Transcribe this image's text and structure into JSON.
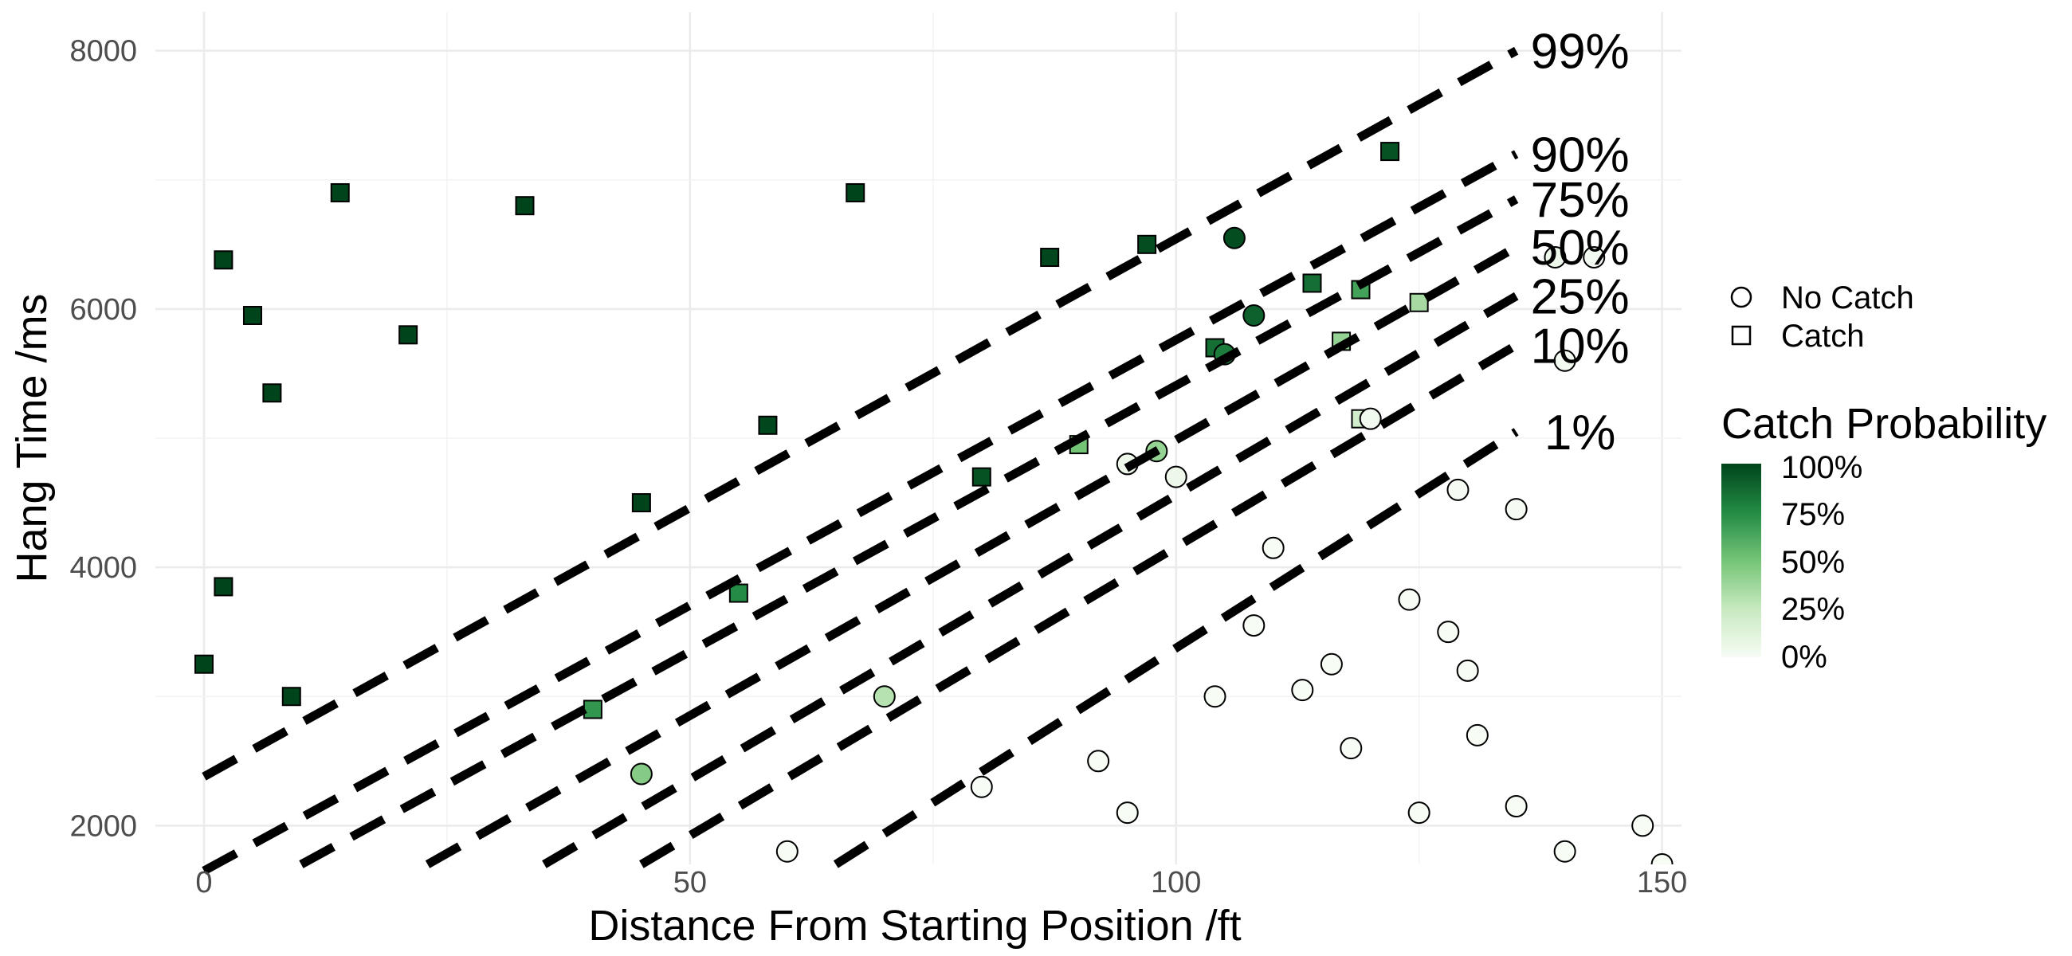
{
  "chart_data": {
    "type": "scatter",
    "xlabel": "Distance From Starting Position /ft",
    "ylabel": "Hang Time /ms",
    "xlim": [
      -5,
      152
    ],
    "ylim": [
      1700,
      8300
    ],
    "x_ticks": [
      0,
      50,
      100,
      150
    ],
    "x_tick_labels": [
      "0",
      "50",
      "100",
      "150"
    ],
    "y_ticks": [
      2000,
      4000,
      6000,
      8000
    ],
    "y_tick_labels": [
      "2000",
      "4000",
      "6000",
      "8000"
    ],
    "grid": true,
    "legend_position": "right",
    "shape_legend": {
      "items": [
        {
          "label": "No Catch",
          "shape": "circle"
        },
        {
          "label": "Catch",
          "shape": "square"
        }
      ]
    },
    "color_legend": {
      "title": "Catch Probability",
      "labels": [
        "100%",
        "75%",
        "50%",
        "25%",
        "0%"
      ],
      "colors": {
        "low": "#f7fcf5",
        "mid": "#74c476",
        "high": "#00441b"
      }
    },
    "probability_contours": [
      {
        "label": "99%",
        "x": [
          0,
          135
        ],
        "y": [
          2380,
          8000
        ]
      },
      {
        "label": "90%",
        "x": [
          0,
          135
        ],
        "y": [
          1650,
          7200
        ]
      },
      {
        "label": "75%",
        "x": [
          10,
          135
        ],
        "y": [
          1700,
          6850
        ]
      },
      {
        "label": "50%",
        "x": [
          23,
          135
        ],
        "y": [
          1700,
          6480
        ]
      },
      {
        "label": "25%",
        "x": [
          35,
          135
        ],
        "y": [
          1700,
          6100
        ]
      },
      {
        "label": "10%",
        "x": [
          45,
          135
        ],
        "y": [
          1700,
          5720
        ]
      },
      {
        "label": "1%",
        "x": [
          65,
          135
        ],
        "y": [
          1700,
          5050
        ]
      }
    ],
    "sample_points": [
      {
        "x": 0,
        "y": 3250,
        "catch": true,
        "p": 1.0
      },
      {
        "x": 2,
        "y": 3850,
        "catch": true,
        "p": 1.0
      },
      {
        "x": 2,
        "y": 6380,
        "catch": true,
        "p": 1.0
      },
      {
        "x": 5,
        "y": 5950,
        "catch": true,
        "p": 1.0
      },
      {
        "x": 7,
        "y": 5350,
        "catch": true,
        "p": 1.0
      },
      {
        "x": 9,
        "y": 3000,
        "catch": true,
        "p": 1.0
      },
      {
        "x": 14,
        "y": 6900,
        "catch": true,
        "p": 1.0
      },
      {
        "x": 21,
        "y": 5800,
        "catch": true,
        "p": 1.0
      },
      {
        "x": 33,
        "y": 6800,
        "catch": true,
        "p": 1.0
      },
      {
        "x": 45,
        "y": 4500,
        "catch": true,
        "p": 1.0
      },
      {
        "x": 58,
        "y": 5100,
        "catch": true,
        "p": 0.99
      },
      {
        "x": 67,
        "y": 6900,
        "catch": true,
        "p": 1.0
      },
      {
        "x": 80,
        "y": 4700,
        "catch": true,
        "p": 0.95
      },
      {
        "x": 87,
        "y": 6400,
        "catch": true,
        "p": 0.99
      },
      {
        "x": 97,
        "y": 6500,
        "catch": true,
        "p": 0.97
      },
      {
        "x": 104,
        "y": 5700,
        "catch": true,
        "p": 0.85
      },
      {
        "x": 122,
        "y": 7220,
        "catch": true,
        "p": 0.95
      },
      {
        "x": 114,
        "y": 6200,
        "catch": true,
        "p": 0.85
      },
      {
        "x": 119,
        "y": 6150,
        "catch": true,
        "p": 0.65
      },
      {
        "x": 125,
        "y": 6050,
        "catch": true,
        "p": 0.35
      },
      {
        "x": 119,
        "y": 5150,
        "catch": true,
        "p": 0.2
      },
      {
        "x": 117,
        "y": 5750,
        "catch": true,
        "p": 0.4
      },
      {
        "x": 90,
        "y": 4950,
        "catch": true,
        "p": 0.5
      },
      {
        "x": 55,
        "y": 3800,
        "catch": true,
        "p": 0.75
      },
      {
        "x": 40,
        "y": 2900,
        "catch": true,
        "p": 0.7
      },
      {
        "x": 106,
        "y": 6550,
        "catch": false,
        "p": 0.97
      },
      {
        "x": 105,
        "y": 5650,
        "catch": false,
        "p": 0.8
      },
      {
        "x": 108,
        "y": 5950,
        "catch": false,
        "p": 0.9
      },
      {
        "x": 98,
        "y": 4900,
        "catch": false,
        "p": 0.4
      },
      {
        "x": 70,
        "y": 3000,
        "catch": false,
        "p": 0.3
      },
      {
        "x": 45,
        "y": 2400,
        "catch": false,
        "p": 0.45
      },
      {
        "x": 120,
        "y": 5150,
        "catch": false,
        "p": 0.03
      },
      {
        "x": 139,
        "y": 6400,
        "catch": false,
        "p": 0.05
      },
      {
        "x": 143,
        "y": 6400,
        "catch": false,
        "p": 0.02
      },
      {
        "x": 140,
        "y": 5600,
        "catch": false,
        "p": 0.02
      },
      {
        "x": 135,
        "y": 4450,
        "catch": false,
        "p": 0.01
      },
      {
        "x": 129,
        "y": 4600,
        "catch": false,
        "p": 0.01
      },
      {
        "x": 124,
        "y": 3750,
        "catch": false,
        "p": 0.0
      },
      {
        "x": 128,
        "y": 3500,
        "catch": false,
        "p": 0.0
      },
      {
        "x": 130,
        "y": 3200,
        "catch": false,
        "p": 0.0
      },
      {
        "x": 131,
        "y": 2700,
        "catch": false,
        "p": 0.0
      },
      {
        "x": 148,
        "y": 2000,
        "catch": false,
        "p": 0.0
      },
      {
        "x": 150,
        "y": 1700,
        "catch": false,
        "p": 0.0
      },
      {
        "x": 135,
        "y": 2150,
        "catch": false,
        "p": 0.0
      },
      {
        "x": 118,
        "y": 2600,
        "catch": false,
        "p": 0.0
      },
      {
        "x": 116,
        "y": 3250,
        "catch": false,
        "p": 0.0
      },
      {
        "x": 113,
        "y": 3050,
        "catch": false,
        "p": 0.0
      },
      {
        "x": 104,
        "y": 3000,
        "catch": false,
        "p": 0.0
      },
      {
        "x": 110,
        "y": 4150,
        "catch": false,
        "p": 0.0
      },
      {
        "x": 108,
        "y": 3550,
        "catch": false,
        "p": 0.0
      },
      {
        "x": 95,
        "y": 4800,
        "catch": false,
        "p": 0.05
      },
      {
        "x": 100,
        "y": 4700,
        "catch": false,
        "p": 0.05
      },
      {
        "x": 92,
        "y": 2500,
        "catch": false,
        "p": 0.0
      },
      {
        "x": 60,
        "y": 1800,
        "catch": false,
        "p": 0.0
      },
      {
        "x": 80,
        "y": 2300,
        "catch": false,
        "p": 0.0
      },
      {
        "x": 95,
        "y": 2100,
        "catch": false,
        "p": 0.0
      },
      {
        "x": 125,
        "y": 2100,
        "catch": false,
        "p": 0.0
      },
      {
        "x": 140,
        "y": 1800,
        "catch": false,
        "p": 0.0
      }
    ]
  }
}
